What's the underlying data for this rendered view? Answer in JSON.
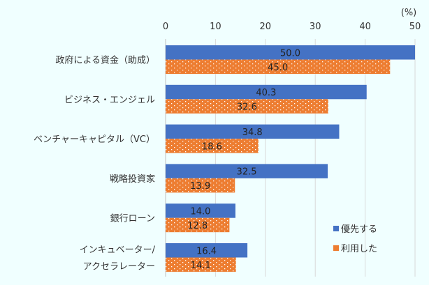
{
  "chart_data": {
    "type": "bar",
    "orientation": "horizontal",
    "unit_label": "(%)",
    "categories": [
      [
        "政府による資金（助成）"
      ],
      [
        "ビジネス・エンジェル"
      ],
      [
        "ベンチャーキャピタル（VC）"
      ],
      [
        "戦略投資家"
      ],
      [
        "銀行ローン"
      ],
      [
        "インキュベーター/",
        "アクセラレーター"
      ]
    ],
    "series": [
      {
        "name": "優先する",
        "color": "#4472c4",
        "pattern": "solid",
        "values": [
          50.0,
          40.3,
          34.8,
          32.5,
          14.0,
          16.4
        ],
        "labels": [
          "50.0",
          "40.3",
          "34.8",
          "32.5",
          "14.0",
          "16.4"
        ]
      },
      {
        "name": "利用した",
        "color": "#ed7d31",
        "pattern": "dotted",
        "values": [
          45.0,
          32.6,
          18.6,
          13.9,
          12.8,
          14.1
        ],
        "labels": [
          "45.0",
          "32.6",
          "18.6",
          "13.9",
          "12.8",
          "14.1"
        ]
      }
    ],
    "xlim": [
      0,
      50
    ],
    "xticks": [
      "0",
      "10",
      "20",
      "30",
      "40",
      "50"
    ],
    "axis_position": "top",
    "grid": true,
    "legend_position": "bottom-right",
    "background": "#f0ffff"
  }
}
